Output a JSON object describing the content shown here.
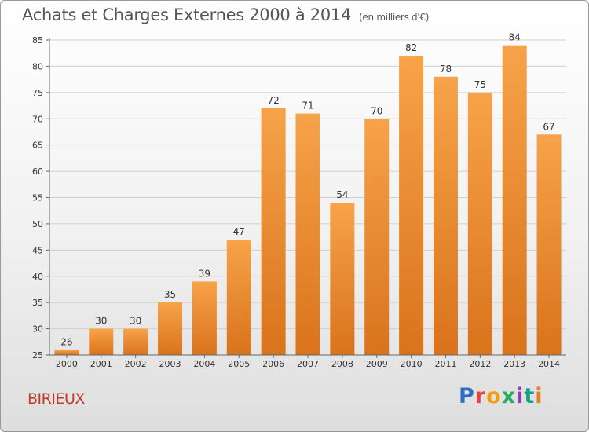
{
  "header": {
    "title": "Achats et Charges Externes 2000 à 2014",
    "unit": "(en milliers d'€)"
  },
  "footer": {
    "commune": "BIRIEUX",
    "brand": "Proxiti",
    "brand_colors": [
      "#2f6fc0",
      "#e8433a",
      "#f39c12",
      "#27ae60",
      "#8e44ad",
      "#16a085",
      "#e67e22"
    ]
  },
  "colors": {
    "bar_top": "#f7a349",
    "bar_bottom": "#d9731c",
    "commune": "#c0392b",
    "grid": "#cfcfcf"
  },
  "chart_data": {
    "type": "bar",
    "title": "Achats et Charges Externes 2000 à 2014",
    "subtitle": "(en milliers d'€)",
    "categories": [
      "2000",
      "2001",
      "2002",
      "2003",
      "2004",
      "2005",
      "2006",
      "2007",
      "2008",
      "2009",
      "2010",
      "2011",
      "2012",
      "2013",
      "2014"
    ],
    "values": [
      26,
      30,
      30,
      35,
      39,
      47,
      72,
      71,
      54,
      70,
      82,
      78,
      75,
      84,
      67
    ],
    "ylim": [
      25,
      85
    ],
    "yticks": [
      25,
      30,
      35,
      40,
      45,
      50,
      55,
      60,
      65,
      70,
      75,
      80,
      85
    ],
    "grid": true
  }
}
